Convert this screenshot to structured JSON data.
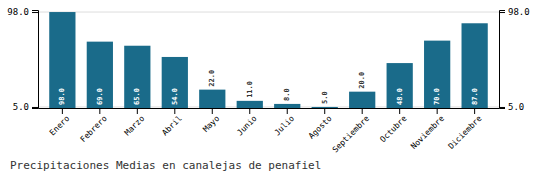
{
  "chart_data": {
    "type": "bar",
    "title": "Precipitaciones Medias en canalejas de penafiel",
    "categories": [
      "Enero",
      "Febrero",
      "Marzo",
      "Abril",
      "Mayo",
      "Junio",
      "Julio",
      "Agosto",
      "Septiembre",
      "Octubre",
      "Noviembre",
      "Diciembre"
    ],
    "values": [
      98.0,
      69.0,
      65.0,
      54.0,
      22.0,
      11.0,
      8.0,
      5.0,
      20.0,
      48.0,
      70.0,
      87.0
    ],
    "value_labels": [
      "98.0",
      "69.0",
      "65.0",
      "54.0",
      "22.0",
      "11.0",
      "8.0",
      "5.0",
      "20.0",
      "48.0",
      "70.0",
      "87.0"
    ],
    "color": "#1a6b8a",
    "ylim": [
      4.0,
      100.0
    ],
    "yticks": [
      {
        "value": 5.0,
        "label": "5.0"
      },
      {
        "value": 98.0,
        "label": "98.0"
      }
    ],
    "y2lim": [
      4.0,
      100.0
    ],
    "y2ticks": [
      {
        "value": 5.0,
        "label": "5.0"
      },
      {
        "value": 98.0,
        "label": "98.0"
      }
    ],
    "grid": true,
    "data_labels": true
  }
}
